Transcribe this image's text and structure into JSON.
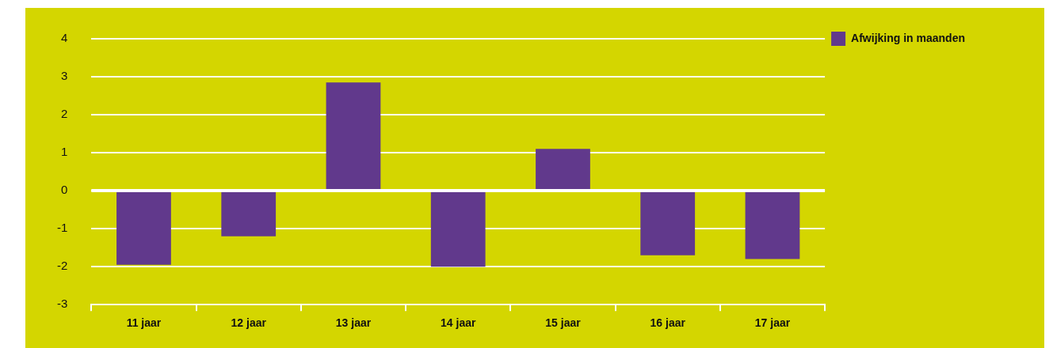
{
  "chart_data": {
    "type": "bar",
    "categories": [
      "11 jaar",
      "12 jaar",
      "13 jaar",
      "14 jaar",
      "15 jaar",
      "16 jaar",
      "17 jaar"
    ],
    "series": [
      {
        "name": "Afwijking in maanden",
        "color": "#61398c",
        "values": [
          -1.95,
          -1.2,
          2.85,
          -2,
          1.1,
          -1.7,
          -1.8
        ]
      }
    ],
    "ylim": [
      -3,
      4
    ],
    "yticks": [
      -3,
      -2,
      -1,
      0,
      1,
      2,
      3,
      4
    ],
    "grid": "y",
    "legend": "top right"
  }
}
